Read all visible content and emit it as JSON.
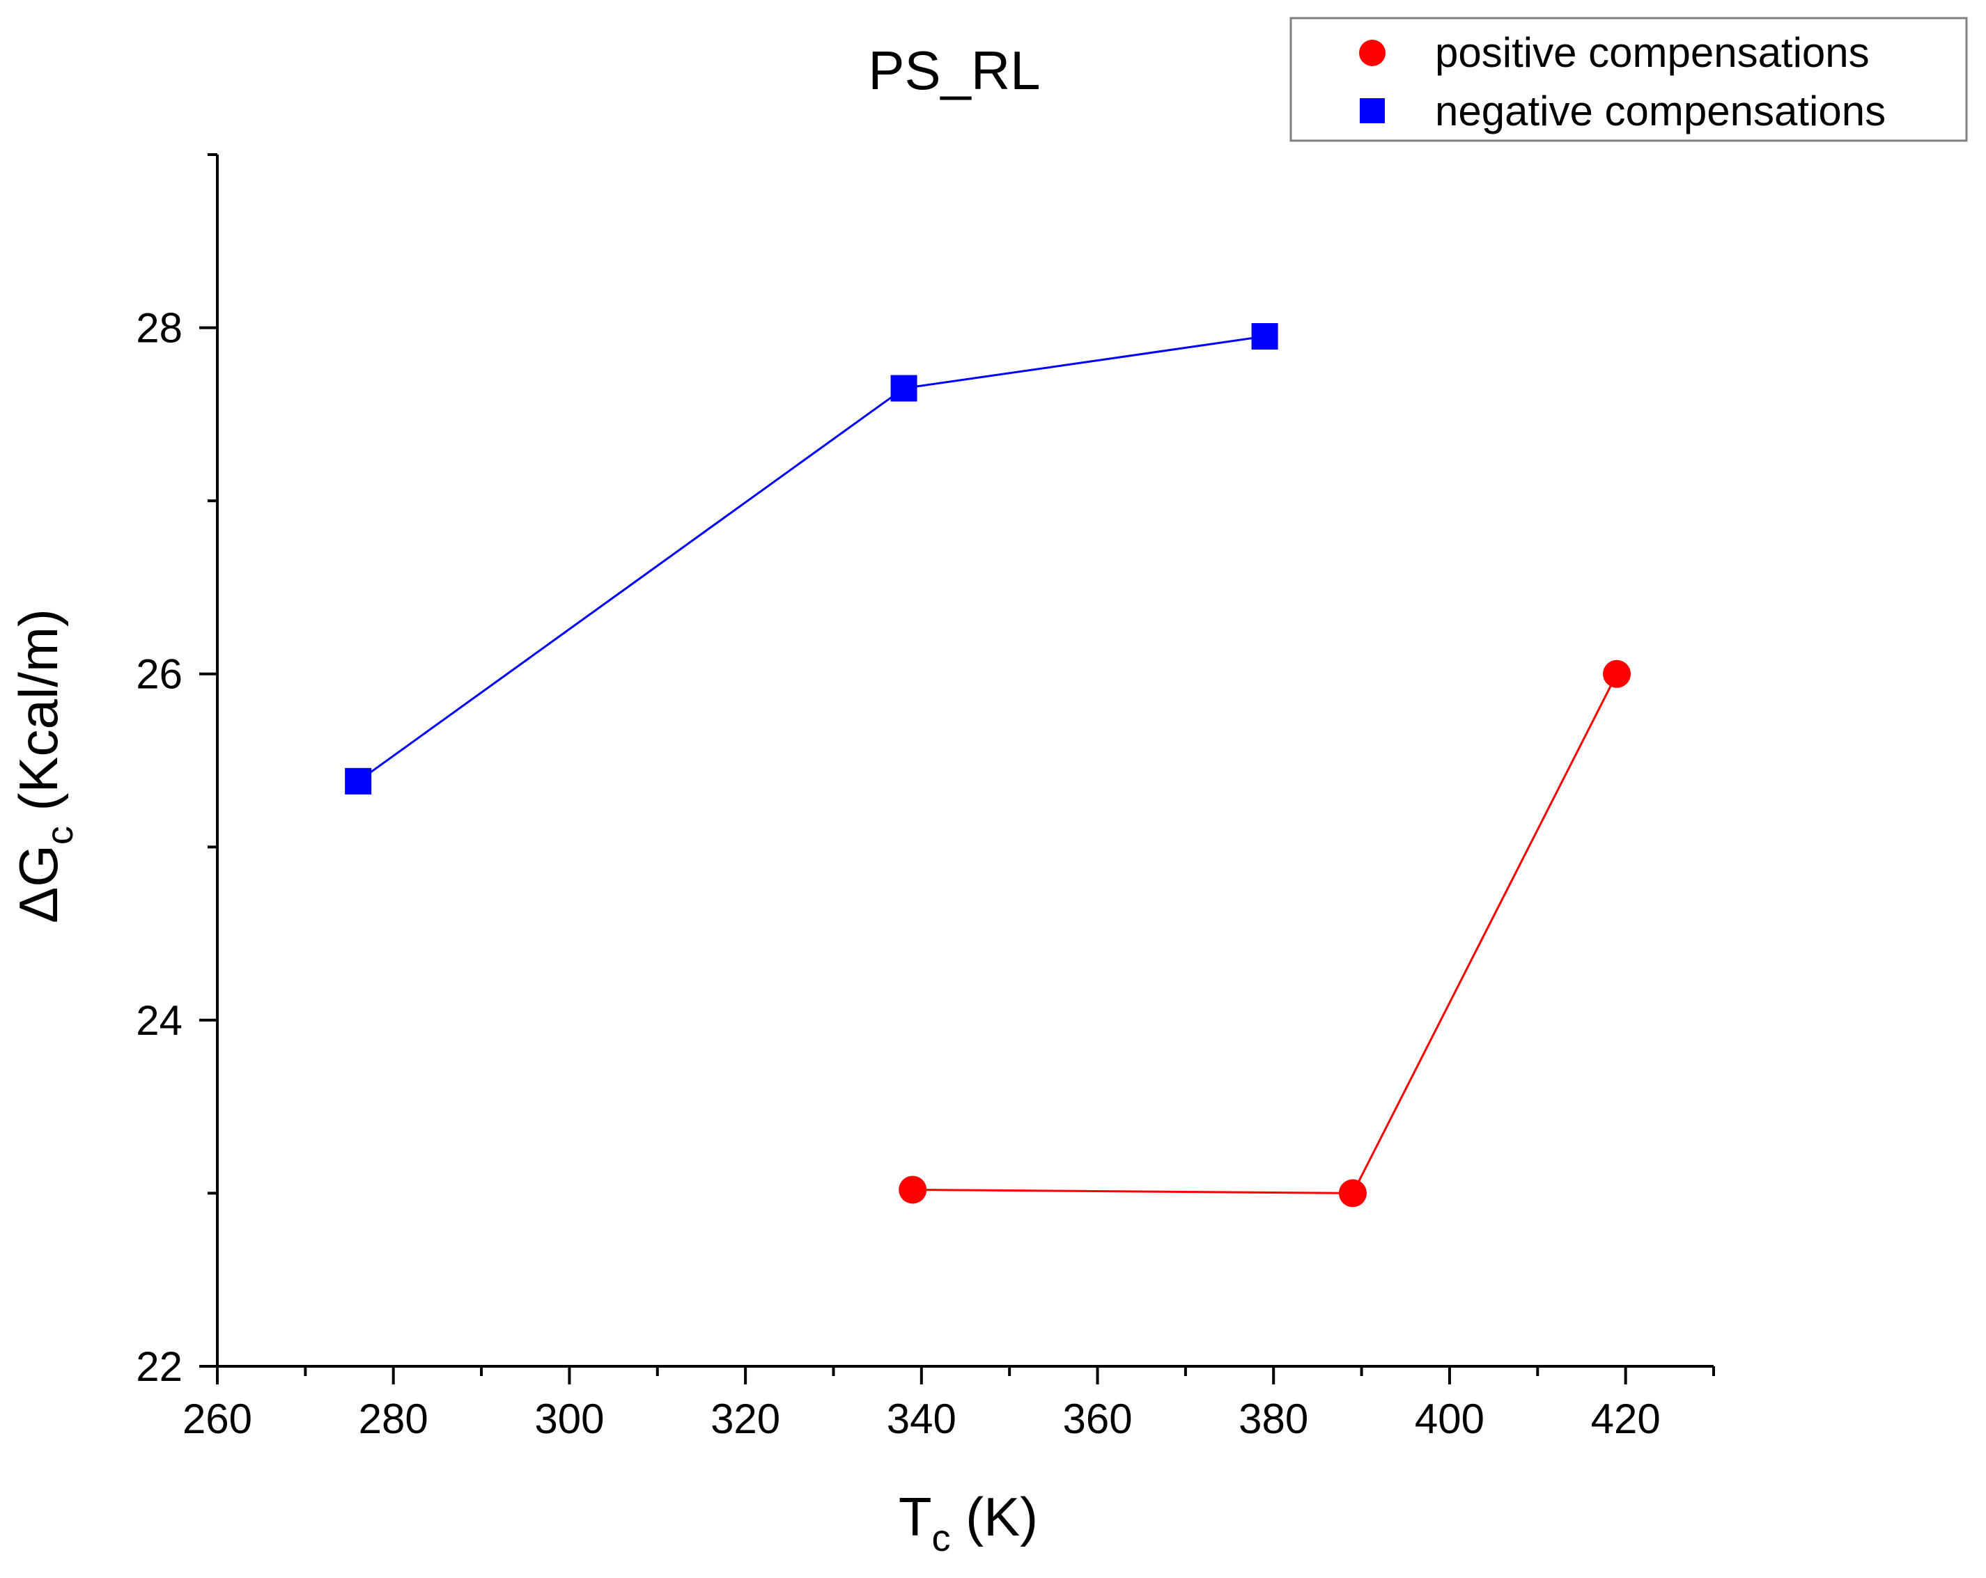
{
  "chart_data": {
    "type": "line",
    "title": "PS_RL",
    "xlabel": {
      "main": "T",
      "sub": "c",
      "rest": " (K)"
    },
    "ylabel": {
      "main": "ΔG",
      "sub": "c",
      "rest": " (Kcal/m)"
    },
    "xlim": [
      260,
      430
    ],
    "ylim": [
      22,
      29
    ],
    "xticks": [
      260,
      280,
      300,
      320,
      340,
      360,
      380,
      400,
      420
    ],
    "yticks": [
      22,
      24,
      26,
      28
    ],
    "grid": false,
    "legend_position": "top-right",
    "series": [
      {
        "name": "positive compensations",
        "color": "#ff0000",
        "marker": "circle",
        "points": [
          [
            339,
            23.02
          ],
          [
            389,
            23.0
          ],
          [
            419,
            26.0
          ]
        ]
      },
      {
        "name": "negative compensations",
        "color": "#0000ff",
        "marker": "square",
        "points": [
          [
            276,
            25.38
          ],
          [
            338,
            27.65
          ],
          [
            379,
            27.95
          ]
        ]
      }
    ]
  }
}
